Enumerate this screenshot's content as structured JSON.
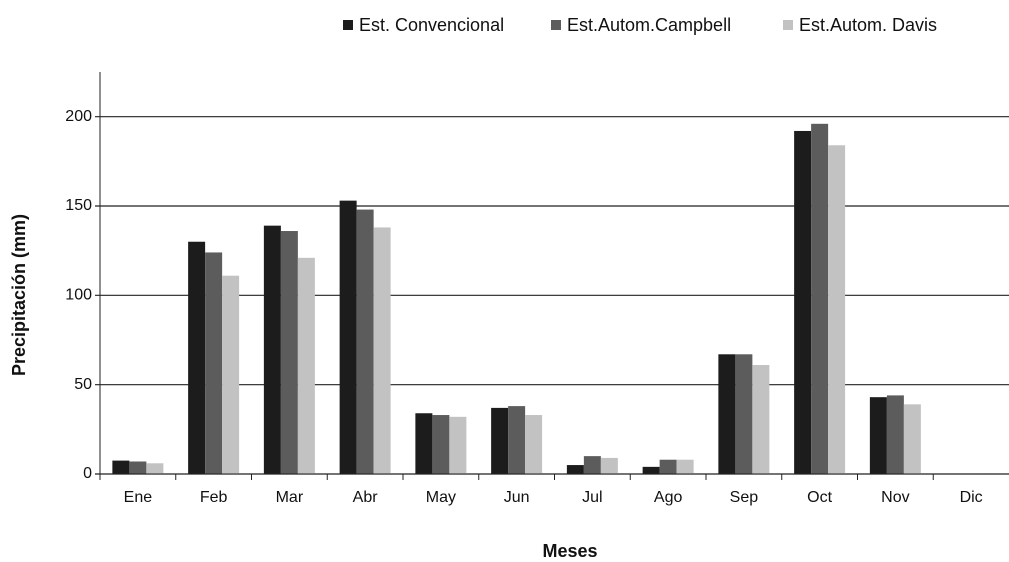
{
  "chart_data": {
    "type": "bar",
    "x_label": "Meses",
    "y_label": "Precipitación (mm)",
    "categories": [
      "Ene",
      "Feb",
      "Mar",
      "Abr",
      "May",
      "Jun",
      "Jul",
      "Ago",
      "Sep",
      "Oct",
      "Nov",
      "Dic"
    ],
    "series": [
      {
        "name": "Est. Convencional",
        "color": "#1c1c1c",
        "values": [
          7.5,
          130,
          139,
          153,
          34,
          37,
          5,
          4,
          67,
          192,
          43,
          0
        ]
      },
      {
        "name": "Est.Autom.Campbell",
        "color": "#5c5c5c",
        "values": [
          7,
          124,
          136,
          148,
          33,
          38,
          10,
          8,
          67,
          196,
          44,
          0
        ]
      },
      {
        "name": "Est.Autom. Davis",
        "color": "#c2c2c2",
        "values": [
          6,
          111,
          121,
          138,
          32,
          33,
          9,
          8,
          61,
          184,
          39,
          0.5
        ]
      }
    ],
    "ylim": [
      0,
      225
    ],
    "yticks": [
      0,
      50,
      100,
      150,
      200
    ],
    "grid": true,
    "legend": "top-right"
  }
}
